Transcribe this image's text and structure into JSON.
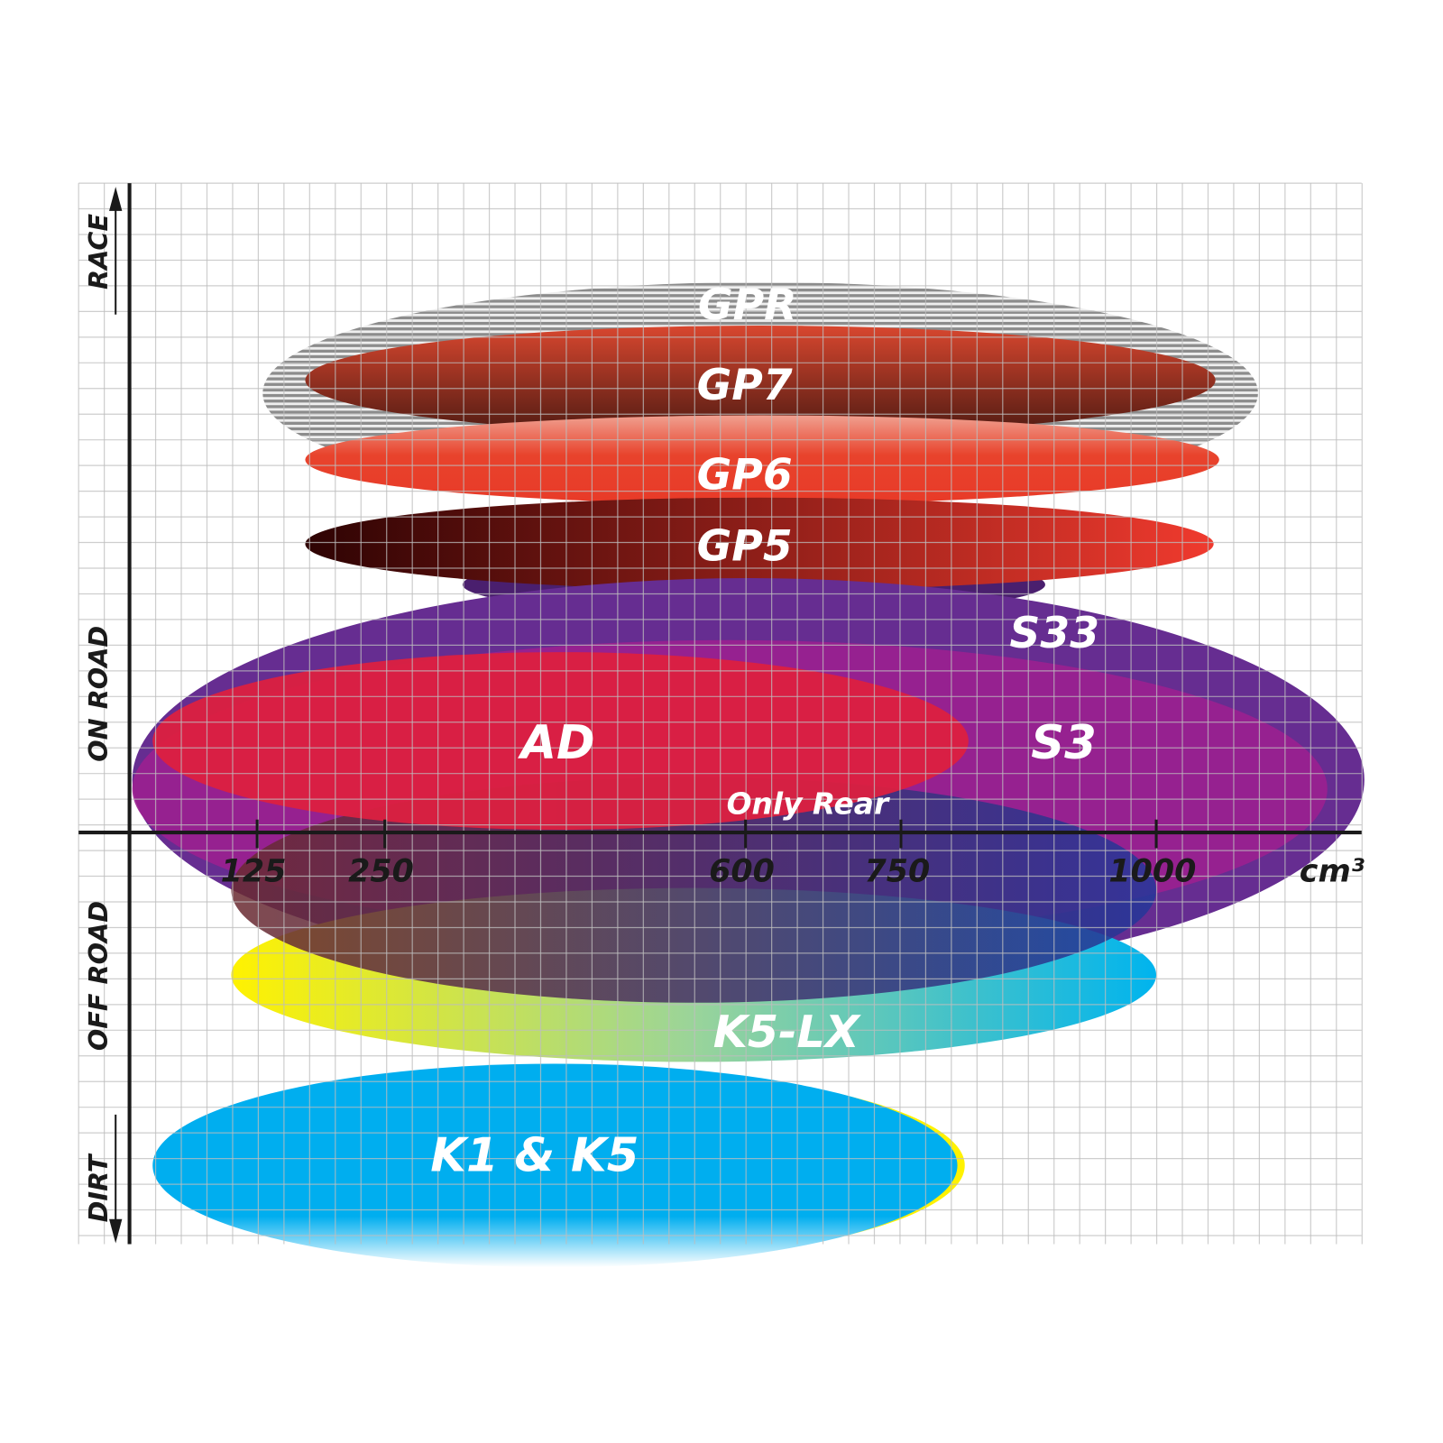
{
  "chart_data": {
    "type": "diagram",
    "x_axis": {
      "unit": "cm³",
      "ticks": [
        "125",
        "250",
        "600",
        "750",
        "1000"
      ]
    },
    "y_axis": {
      "labels": [
        "RACE",
        "ON ROAD",
        "OFF ROAD",
        "DIRT"
      ]
    },
    "grid": true,
    "products": [
      {
        "name": "GPR",
        "color": "#9a9a9a",
        "pattern": "horizontal-stripes"
      },
      {
        "name": "GP7",
        "color": "#8a2a1c"
      },
      {
        "name": "GP6",
        "color": "#e8432c"
      },
      {
        "name": "GP5",
        "color": "#b0201a"
      },
      {
        "name": "S33",
        "color": "#662d91"
      },
      {
        "name": "S3",
        "color": "#9b2090"
      },
      {
        "name": "AD",
        "color": "#dc2040"
      },
      {
        "name": "Only Rear",
        "color": "#5a2a5a"
      },
      {
        "name": "K5-LX",
        "color": "#7fd0a0"
      },
      {
        "name": "K1 & K5",
        "color": "#00aeef"
      }
    ]
  }
}
